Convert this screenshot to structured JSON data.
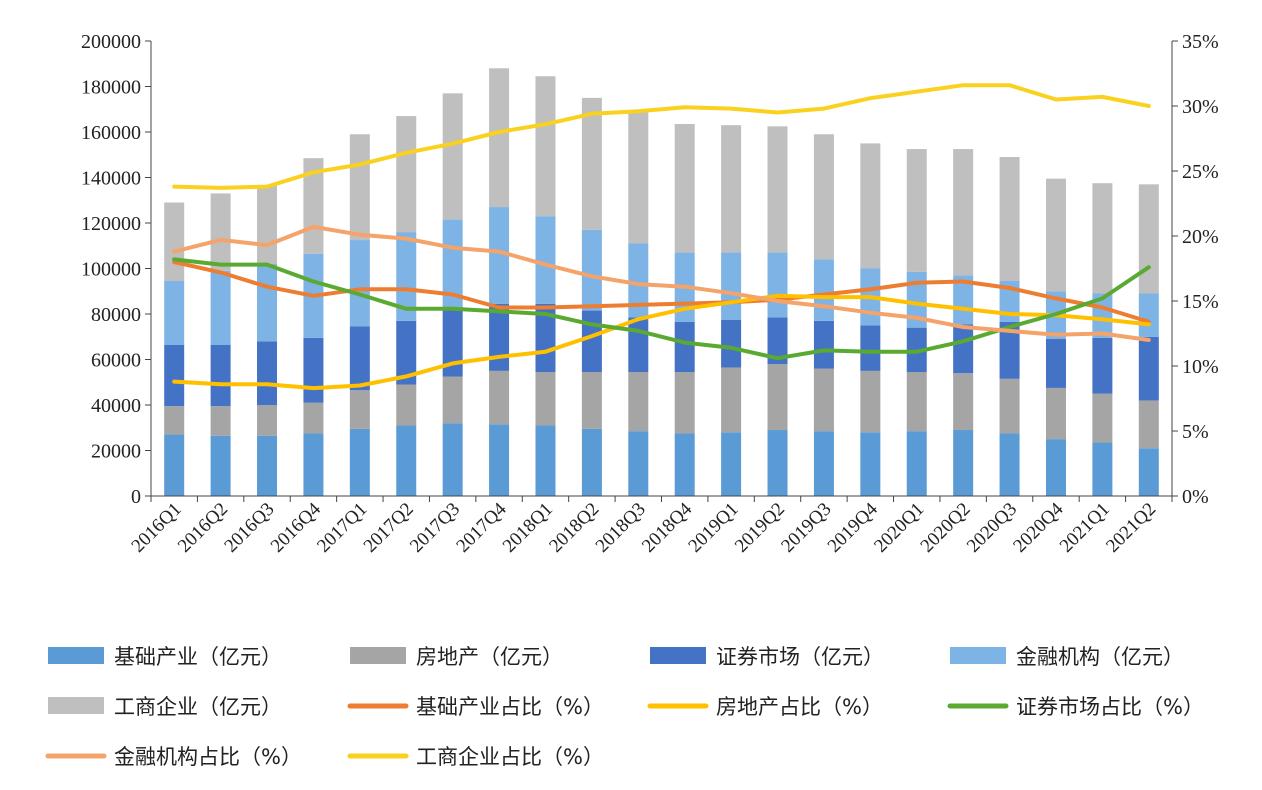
{
  "chart_data": {
    "type": "bar",
    "subtype": "stacked bar with line overlay on secondary axis",
    "categories": [
      "2016Q1",
      "2016Q2",
      "2016Q3",
      "2016Q4",
      "2017Q1",
      "2017Q2",
      "2017Q3",
      "2017Q4",
      "2018Q1",
      "2018Q2",
      "2018Q3",
      "2018Q4",
      "2019Q1",
      "2019Q2",
      "2019Q3",
      "2019Q4",
      "2020Q1",
      "2020Q2",
      "2020Q3",
      "2020Q4",
      "2021Q1",
      "2021Q2"
    ],
    "y_left": {
      "range": [
        0,
        200000
      ],
      "ticks": [
        "0",
        "20000",
        "40000",
        "60000",
        "80000",
        "100000",
        "120000",
        "140000",
        "160000",
        "180000",
        "200000"
      ]
    },
    "y_right": {
      "range": [
        0,
        35
      ],
      "ticks": [
        "0%",
        "5%",
        "10%",
        "15%",
        "20%",
        "25%",
        "30%",
        "35%"
      ]
    },
    "bar_series": [
      {
        "name": "基础产业（亿元）",
        "color": "#5B9BD5",
        "values": [
          27000,
          26500,
          26500,
          27500,
          29500,
          31000,
          32000,
          31500,
          31000,
          29500,
          28500,
          27500,
          28000,
          29000,
          28500,
          28000,
          28500,
          29000,
          27500,
          25000,
          23500,
          21000
        ]
      },
      {
        "name": "房地产（亿元）",
        "color": "#A5A5A5",
        "values": [
          12500,
          13000,
          13500,
          13500,
          17000,
          18000,
          20500,
          23500,
          23500,
          25000,
          26000,
          27000,
          28500,
          29000,
          27500,
          27000,
          26000,
          25000,
          24000,
          22500,
          21500,
          21000
        ]
      },
      {
        "name": "证券市场（亿元）",
        "color": "#4472C4",
        "values": [
          27000,
          27000,
          28000,
          28500,
          28000,
          28000,
          29500,
          29500,
          30000,
          27000,
          24000,
          22000,
          21000,
          20500,
          21000,
          20000,
          19500,
          21500,
          25000,
          21500,
          24500,
          28000
        ]
      },
      {
        "name": "金融机构（亿元）",
        "color": "#7EB3E6",
        "values": [
          28000,
          32500,
          34000,
          37000,
          38000,
          39000,
          39500,
          42500,
          38500,
          35500,
          32500,
          30500,
          29500,
          28500,
          27000,
          25000,
          24500,
          21500,
          18000,
          21000,
          19500,
          19000
        ]
      },
      {
        "name": "工商企业（亿元）",
        "color": "#BFBFBF",
        "values": [
          34500,
          34000,
          34500,
          42000,
          46500,
          51000,
          55500,
          61000,
          61500,
          58000,
          58500,
          56500,
          56000,
          55500,
          55000,
          55000,
          54000,
          55500,
          54500,
          49500,
          48500,
          48000
        ]
      }
    ],
    "line_series": [
      {
        "name": "基础产业占比（%）",
        "color": "#ED7D31",
        "values": [
          18.0,
          17.2,
          16.1,
          15.4,
          15.9,
          15.9,
          15.5,
          14.5,
          14.5,
          14.6,
          14.7,
          14.8,
          14.9,
          15.1,
          15.5,
          15.9,
          16.4,
          16.5,
          16.0,
          15.2,
          14.5,
          13.4
        ]
      },
      {
        "name": "房地产占比（%）",
        "color": "#FFC000",
        "values": [
          8.8,
          8.6,
          8.6,
          8.3,
          8.5,
          9.2,
          10.2,
          10.7,
          11.1,
          12.3,
          13.6,
          14.4,
          14.9,
          15.4,
          15.3,
          15.3,
          14.8,
          14.4,
          14.0,
          13.9,
          13.6,
          13.2
        ]
      },
      {
        "name": "证券市场占比（%）",
        "color": "#5AAA32",
        "values": [
          18.2,
          17.8,
          17.8,
          16.5,
          15.5,
          14.4,
          14.4,
          14.2,
          14.0,
          13.2,
          12.7,
          11.8,
          11.4,
          10.6,
          11.2,
          11.1,
          11.1,
          11.9,
          13.0,
          14.0,
          15.2,
          17.6
        ]
      },
      {
        "name": "金融机构占比（%）",
        "color": "#F4A46A",
        "values": [
          18.8,
          19.7,
          19.3,
          20.7,
          20.1,
          19.8,
          19.1,
          18.8,
          17.8,
          16.9,
          16.3,
          16.1,
          15.6,
          15.0,
          14.6,
          14.1,
          13.7,
          13.0,
          12.7,
          12.4,
          12.5,
          12.0
        ]
      },
      {
        "name": "工商企业占比（%）",
        "color": "#F9D11E",
        "values": [
          23.8,
          23.7,
          23.8,
          24.9,
          25.5,
          26.4,
          27.1,
          28.0,
          28.6,
          29.4,
          29.6,
          29.9,
          29.8,
          29.5,
          29.8,
          30.6,
          31.1,
          31.6,
          31.6,
          30.5,
          30.7,
          30.0
        ]
      }
    ],
    "legend_placement": "bottom",
    "grid": false
  }
}
